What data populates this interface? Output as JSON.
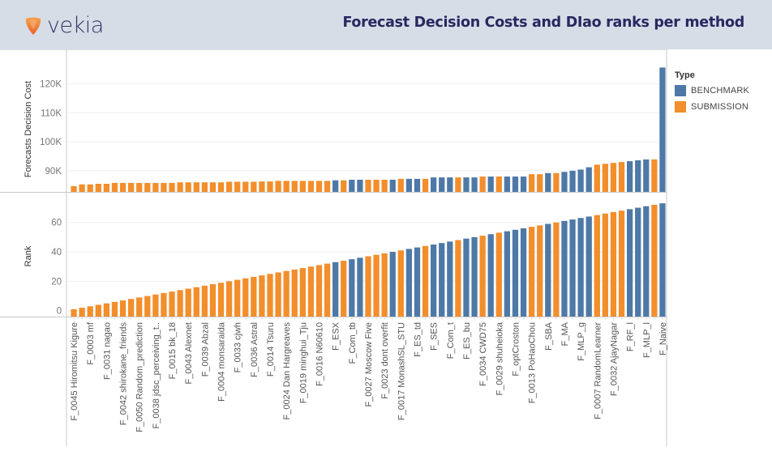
{
  "header": {
    "brand": "vekia",
    "title": "Forecast Decision Costs and DIao ranks per method"
  },
  "legend": {
    "title": "Type",
    "items": [
      {
        "label": "BENCHMARK",
        "color": "#4e79a7"
      },
      {
        "label": "SUBMISSION",
        "color": "#f28e2b"
      }
    ]
  },
  "chart_data": [
    {
      "type": "bar",
      "title": "Forecasts Decision Cost",
      "ylabel": "Forecasts Decision Cost",
      "xlabel": "",
      "ylim": [
        82700,
        126000
      ],
      "yticks": [
        90000,
        100000,
        110000,
        120000
      ],
      "ytick_labels": [
        "90K",
        "100K",
        "110K",
        "120K"
      ],
      "grid": true,
      "series_key": "cost"
    },
    {
      "type": "bar",
      "title": "Rank",
      "ylabel": "Rank",
      "xlabel": "",
      "ylim": [
        -4,
        78
      ],
      "yticks": [
        0,
        20,
        40,
        60
      ],
      "ytick_labels": [
        "0",
        "20",
        "40",
        "60"
      ],
      "grid": true,
      "series_key": "rank"
    }
  ],
  "colors": {
    "BENCHMARK": "#4e79a7",
    "SUBMISSION": "#f28e2b"
  },
  "bars": [
    {
      "label": "F_0045 Hiromitsu Kigure",
      "type": "SUBMISSION",
      "cost": 84700,
      "rank": 1
    },
    {
      "label": "",
      "type": "SUBMISSION",
      "cost": 85300,
      "rank": 2
    },
    {
      "label": "F_0003 mf",
      "type": "SUBMISSION",
      "cost": 85300,
      "rank": 3
    },
    {
      "label": "",
      "type": "SUBMISSION",
      "cost": 85500,
      "rank": 4
    },
    {
      "label": "F_0031 nagao",
      "type": "SUBMISSION",
      "cost": 85500,
      "rank": 5
    },
    {
      "label": "",
      "type": "SUBMISSION",
      "cost": 85800,
      "rank": 6
    },
    {
      "label": "F_0042 shirokane_friends",
      "type": "SUBMISSION",
      "cost": 85800,
      "rank": 7
    },
    {
      "label": "",
      "type": "SUBMISSION",
      "cost": 85800,
      "rank": 8
    },
    {
      "label": "F_0050 Random_prediction",
      "type": "SUBMISSION",
      "cost": 85800,
      "rank": 9
    },
    {
      "label": "",
      "type": "SUBMISSION",
      "cost": 85800,
      "rank": 10
    },
    {
      "label": "F_0038 jdsc_perceiving_t..",
      "type": "SUBMISSION",
      "cost": 85800,
      "rank": 11
    },
    {
      "label": "",
      "type": "SUBMISSION",
      "cost": 85800,
      "rank": 12
    },
    {
      "label": "F_0015 bk_18",
      "type": "SUBMISSION",
      "cost": 85800,
      "rank": 13
    },
    {
      "label": "",
      "type": "SUBMISSION",
      "cost": 86000,
      "rank": 14
    },
    {
      "label": "F_0043 Alexnet",
      "type": "SUBMISSION",
      "cost": 86000,
      "rank": 15
    },
    {
      "label": "",
      "type": "SUBMISSION",
      "cost": 86000,
      "rank": 16
    },
    {
      "label": "F_0039 Abzal",
      "type": "SUBMISSION",
      "cost": 86000,
      "rank": 17
    },
    {
      "label": "",
      "type": "SUBMISSION",
      "cost": 86000,
      "rank": 18
    },
    {
      "label": "F_0004 monsaraida",
      "type": "SUBMISSION",
      "cost": 86000,
      "rank": 19
    },
    {
      "label": "",
      "type": "SUBMISSION",
      "cost": 86200,
      "rank": 20
    },
    {
      "label": "F_0033 cjwh",
      "type": "SUBMISSION",
      "cost": 86200,
      "rank": 21
    },
    {
      "label": "",
      "type": "SUBMISSION",
      "cost": 86200,
      "rank": 22
    },
    {
      "label": "F_0036 Astral",
      "type": "SUBMISSION",
      "cost": 86200,
      "rank": 23
    },
    {
      "label": "",
      "type": "SUBMISSION",
      "cost": 86300,
      "rank": 24
    },
    {
      "label": "F_0014 Tsuru",
      "type": "SUBMISSION",
      "cost": 86300,
      "rank": 25
    },
    {
      "label": "",
      "type": "SUBMISSION",
      "cost": 86500,
      "rank": 26
    },
    {
      "label": "F_0024 Dan Hargreaves",
      "type": "SUBMISSION",
      "cost": 86500,
      "rank": 27
    },
    {
      "label": "",
      "type": "SUBMISSION",
      "cost": 86500,
      "rank": 28
    },
    {
      "label": "F_0019 minghui_Tju",
      "type": "SUBMISSION",
      "cost": 86500,
      "rank": 29
    },
    {
      "label": "",
      "type": "SUBMISSION",
      "cost": 86500,
      "rank": 30
    },
    {
      "label": "F_0016 N60610",
      "type": "SUBMISSION",
      "cost": 86500,
      "rank": 31
    },
    {
      "label": "",
      "type": "SUBMISSION",
      "cost": 86500,
      "rank": 32
    },
    {
      "label": "F_ESX",
      "type": "BENCHMARK",
      "cost": 86700,
      "rank": 33
    },
    {
      "label": "",
      "type": "SUBMISSION",
      "cost": 86700,
      "rank": 34
    },
    {
      "label": "F_Com_tb",
      "type": "BENCHMARK",
      "cost": 86900,
      "rank": 35
    },
    {
      "label": "",
      "type": "BENCHMARK",
      "cost": 86900,
      "rank": 36
    },
    {
      "label": "F_0027 Moscow Five",
      "type": "SUBMISSION",
      "cost": 86900,
      "rank": 37
    },
    {
      "label": "",
      "type": "SUBMISSION",
      "cost": 86900,
      "rank": 38
    },
    {
      "label": "F_0023 dont overfit",
      "type": "SUBMISSION",
      "cost": 86900,
      "rank": 39
    },
    {
      "label": "",
      "type": "BENCHMARK",
      "cost": 86900,
      "rank": 40
    },
    {
      "label": "F_0017 MonashSL_STU",
      "type": "SUBMISSION",
      "cost": 87200,
      "rank": 41
    },
    {
      "label": "",
      "type": "BENCHMARK",
      "cost": 87200,
      "rank": 42
    },
    {
      "label": "F_ES_td",
      "type": "BENCHMARK",
      "cost": 87200,
      "rank": 43
    },
    {
      "label": "",
      "type": "SUBMISSION",
      "cost": 87200,
      "rank": 44
    },
    {
      "label": "F_SES",
      "type": "BENCHMARK",
      "cost": 87700,
      "rank": 45
    },
    {
      "label": "",
      "type": "BENCHMARK",
      "cost": 87700,
      "rank": 46
    },
    {
      "label": "F_Com_t",
      "type": "BENCHMARK",
      "cost": 87700,
      "rank": 47
    },
    {
      "label": "",
      "type": "SUBMISSION",
      "cost": 87700,
      "rank": 48
    },
    {
      "label": "F_ES_bu",
      "type": "BENCHMARK",
      "cost": 87700,
      "rank": 49
    },
    {
      "label": "",
      "type": "BENCHMARK",
      "cost": 87700,
      "rank": 50
    },
    {
      "label": "F_0034 CWD75",
      "type": "SUBMISSION",
      "cost": 88000,
      "rank": 51
    },
    {
      "label": "",
      "type": "BENCHMARK",
      "cost": 88000,
      "rank": 52
    },
    {
      "label": "F_0029 shuheioka",
      "type": "SUBMISSION",
      "cost": 88000,
      "rank": 53
    },
    {
      "label": "",
      "type": "BENCHMARK",
      "cost": 88000,
      "rank": 54
    },
    {
      "label": "F_optCroston",
      "type": "BENCHMARK",
      "cost": 88000,
      "rank": 55
    },
    {
      "label": "",
      "type": "BENCHMARK",
      "cost": 88000,
      "rank": 56
    },
    {
      "label": "F_0013 PoHaoChou",
      "type": "SUBMISSION",
      "cost": 88800,
      "rank": 57
    },
    {
      "label": "",
      "type": "SUBMISSION",
      "cost": 88800,
      "rank": 58
    },
    {
      "label": "F_SBA",
      "type": "BENCHMARK",
      "cost": 89200,
      "rank": 59
    },
    {
      "label": "",
      "type": "SUBMISSION",
      "cost": 89200,
      "rank": 60
    },
    {
      "label": "F_MA",
      "type": "BENCHMARK",
      "cost": 89600,
      "rank": 61
    },
    {
      "label": "",
      "type": "BENCHMARK",
      "cost": 90000,
      "rank": 62
    },
    {
      "label": "F_MLP_g",
      "type": "BENCHMARK",
      "cost": 90400,
      "rank": 63
    },
    {
      "label": "",
      "type": "BENCHMARK",
      "cost": 91200,
      "rank": 64
    },
    {
      "label": "F_0007 RandomLearner",
      "type": "SUBMISSION",
      "cost": 92100,
      "rank": 65
    },
    {
      "label": "",
      "type": "SUBMISSION",
      "cost": 92400,
      "rank": 66
    },
    {
      "label": "F_0032 AjayNagar",
      "type": "SUBMISSION",
      "cost": 92700,
      "rank": 67
    },
    {
      "label": "",
      "type": "SUBMISSION",
      "cost": 93000,
      "rank": 68
    },
    {
      "label": "F_RF_l",
      "type": "BENCHMARK",
      "cost": 93300,
      "rank": 69
    },
    {
      "label": "",
      "type": "BENCHMARK",
      "cost": 93600,
      "rank": 70
    },
    {
      "label": "F_MLP_l",
      "type": "BENCHMARK",
      "cost": 93900,
      "rank": 71
    },
    {
      "label": "",
      "type": "SUBMISSION",
      "cost": 93900,
      "rank": 72
    },
    {
      "label": "F_Naive",
      "type": "BENCHMARK",
      "cost": 125600,
      "rank": 73
    }
  ]
}
